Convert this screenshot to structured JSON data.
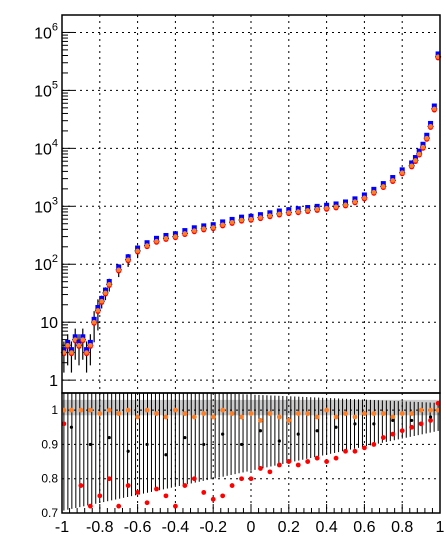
{
  "chart_data": [
    {
      "type": "scatter",
      "panel": "upper",
      "title": "",
      "xlabel": "",
      "ylabel": "",
      "yscale": "log",
      "xlim": [
        -1,
        1
      ],
      "ylim": [
        0.6,
        2000000
      ],
      "grid": true,
      "y_ticks": [
        {
          "value": 1,
          "mantissa": "1",
          "exp": ""
        },
        {
          "value": 10,
          "mantissa": "10",
          "exp": ""
        },
        {
          "value": 100,
          "mantissa": "10",
          "exp": "2"
        },
        {
          "value": 1000,
          "mantissa": "10",
          "exp": "3"
        },
        {
          "value": 10000,
          "mantissa": "10",
          "exp": "4"
        },
        {
          "value": 100000,
          "mantissa": "10",
          "exp": "5"
        },
        {
          "value": 1000000,
          "mantissa": "10",
          "exp": "6"
        }
      ],
      "colors": {
        "series_a": "#000000",
        "series_b": "#0000ff",
        "series_c": "#ff0000",
        "series_d": "#ff7f27"
      },
      "series": [
        {
          "color": "#ff7f27",
          "x": [
            -0.99,
            -0.97,
            -0.95,
            -0.93,
            -0.91,
            -0.89,
            -0.87,
            -0.85,
            -0.83,
            -0.81,
            -0.79,
            -0.77,
            -0.75,
            -0.7,
            -0.65,
            -0.6,
            -0.55,
            -0.5,
            -0.45,
            -0.4,
            -0.35,
            -0.3,
            -0.25,
            -0.2,
            -0.15,
            -0.1,
            -0.05,
            0.0,
            0.05,
            0.1,
            0.15,
            0.2,
            0.25,
            0.3,
            0.35,
            0.4,
            0.45,
            0.5,
            0.55,
            0.6,
            0.65,
            0.7,
            0.75,
            0.8,
            0.85,
            0.87,
            0.89,
            0.91,
            0.93,
            0.95,
            0.97,
            0.99
          ],
          "y": [
            3,
            4,
            3,
            5,
            4,
            5,
            3,
            4,
            10,
            16,
            23,
            32,
            45,
            80,
            120,
            170,
            210,
            250,
            280,
            300,
            340,
            380,
            410,
            430,
            480,
            530,
            580,
            600,
            640,
            690,
            740,
            780,
            810,
            850,
            890,
            930,
            980,
            1060,
            1200,
            1400,
            1750,
            2200,
            2800,
            3800,
            5000,
            6200,
            8000,
            10500,
            15000,
            24000,
            48000,
            380000
          ]
        }
      ]
    },
    {
      "type": "scatter",
      "panel": "ratio",
      "title": "",
      "xlabel": "",
      "ylabel": "",
      "xlim": [
        -1,
        1
      ],
      "ylim": [
        0.7,
        1.05
      ],
      "grid": true,
      "x_ticks": [
        "-1",
        "-0.8",
        "-0.6",
        "-0.4",
        "-0.2",
        "0",
        "0.2",
        "0.4",
        "0.6",
        "0.8",
        "1"
      ],
      "y_ticks": [
        "0.7",
        "0.8",
        "0.9",
        "1"
      ],
      "band": {
        "color": "#cccccc",
        "lower": 0.985,
        "upper": 1.03
      },
      "series": [
        {
          "color": "#ff7f27",
          "x": [
            -0.99,
            -0.95,
            -0.9,
            -0.85,
            -0.8,
            -0.75,
            -0.7,
            -0.65,
            -0.6,
            -0.55,
            -0.5,
            -0.45,
            -0.4,
            -0.35,
            -0.3,
            -0.25,
            -0.2,
            -0.15,
            -0.1,
            -0.05,
            0.0,
            0.05,
            0.1,
            0.15,
            0.2,
            0.25,
            0.3,
            0.35,
            0.4,
            0.45,
            0.5,
            0.55,
            0.6,
            0.65,
            0.7,
            0.75,
            0.8,
            0.85,
            0.9,
            0.95,
            0.99
          ],
          "y": [
            1.0,
            1.0,
            1.0,
            1.0,
            0.99,
            1.0,
            0.99,
            1.0,
            0.98,
            1.0,
            0.99,
            0.98,
            1.0,
            0.99,
            0.98,
            0.99,
            0.98,
            1.0,
            0.99,
            0.98,
            0.99,
            0.97,
            0.99,
            0.98,
            0.97,
            0.99,
            0.99,
            0.98,
            1.0,
            0.98,
            0.99,
            0.98,
            0.99,
            0.99,
            0.99,
            0.98,
            0.99,
            0.99,
            1.0,
            1.0,
            1.0
          ]
        },
        {
          "color": "#ff0000",
          "x": [
            -0.99,
            -0.9,
            -0.85,
            -0.8,
            -0.75,
            -0.7,
            -0.65,
            -0.6,
            -0.55,
            -0.5,
            -0.45,
            -0.4,
            -0.35,
            -0.3,
            -0.25,
            -0.2,
            -0.15,
            -0.1,
            -0.05,
            0.0,
            0.05,
            0.1,
            0.15,
            0.2,
            0.25,
            0.3,
            0.35,
            0.4,
            0.45,
            0.5,
            0.55,
            0.6,
            0.65,
            0.7,
            0.75,
            0.8,
            0.85,
            0.9,
            0.95,
            0.99
          ],
          "y": [
            0.96,
            0.78,
            0.72,
            0.75,
            0.8,
            0.72,
            0.78,
            0.76,
            0.73,
            0.77,
            0.75,
            0.72,
            0.78,
            0.8,
            0.76,
            0.74,
            0.75,
            0.78,
            0.8,
            0.8,
            0.83,
            0.82,
            0.84,
            0.85,
            0.84,
            0.85,
            0.86,
            0.85,
            0.86,
            0.88,
            0.88,
            0.89,
            0.9,
            0.92,
            0.93,
            0.94,
            0.95,
            0.96,
            0.97,
            1.02
          ]
        },
        {
          "color": "#000000",
          "x": [
            -0.95,
            -0.85,
            -0.75,
            -0.65,
            -0.55,
            -0.45,
            -0.35,
            -0.25,
            -0.15,
            -0.05,
            0.05,
            0.15,
            0.25,
            0.35,
            0.45,
            0.55,
            0.65,
            0.75,
            0.85,
            0.95
          ],
          "y": [
            0.95,
            0.9,
            0.92,
            0.88,
            0.9,
            0.87,
            0.92,
            0.9,
            0.93,
            0.9,
            0.94,
            0.91,
            0.93,
            0.94,
            0.95,
            0.96,
            0.96,
            0.97,
            0.97,
            0.98
          ]
        }
      ]
    }
  ]
}
